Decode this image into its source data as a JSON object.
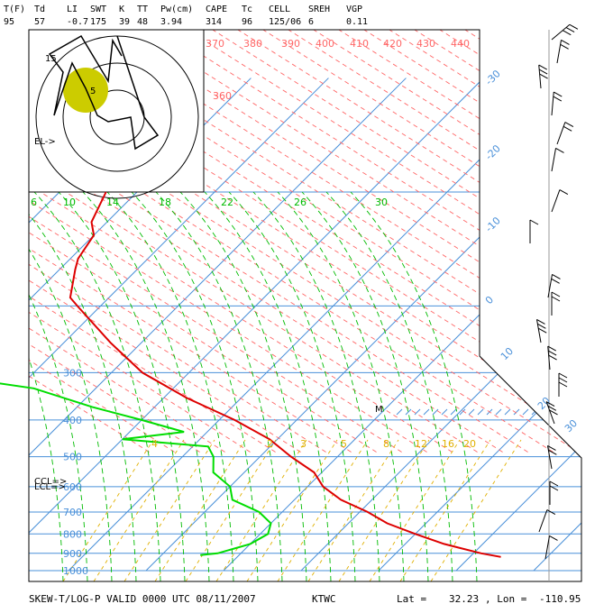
{
  "header": {
    "labels": [
      "T(F)",
      "Td",
      "LI",
      "SWT",
      "K",
      "TT",
      "Pw(cm)",
      "CAPE",
      "Tc",
      "CELL",
      "SREH",
      "VGP"
    ],
    "values": [
      "95",
      "57",
      "-0.7",
      "175",
      "39",
      "48",
      "3.94",
      "314",
      "96",
      "125/06",
      "6",
      "0.11"
    ]
  },
  "footer": {
    "title": "SKEW-T/LOG-P VALID 0000 UTC 08/11/2007",
    "station": "KTWC",
    "lat_label": "Lat =",
    "lat_value": "32.23",
    "lon_label": ", Lon =",
    "lon_value": "-110.95"
  },
  "hodograph": {
    "el_label": "EL->",
    "ring_labels": [
      "5",
      "15"
    ]
  },
  "markers": {
    "lcl_label": "LCL=>",
    "ccl_label": "CCL=>",
    "parcel_label": "M"
  },
  "colors": {
    "temperature": "#dd0000",
    "dewpoint": "#00dd00",
    "isotherm": "#4a90d9",
    "isobar": "#4a90d9",
    "theta_e": "#ff6666",
    "moist_adiabat": "#00bb00",
    "mixing_ratio": "#e0b000",
    "hodo_blob": "#cccc00"
  },
  "chart_data": {
    "type": "skew-t log-p",
    "pressure_levels_hPa": [
      100,
      200,
      300,
      400,
      500,
      600,
      700,
      800,
      900,
      1000
    ],
    "pressure_labels": [
      "300",
      "400",
      "500",
      "600",
      "700",
      "800",
      "900",
      "1000"
    ],
    "isotherm_labels_C": [
      "-30",
      "-20",
      "-10",
      "0",
      "10",
      "20",
      "30"
    ],
    "theta_e_labels_K": [
      "360",
      "370",
      "380",
      "390",
      "400",
      "410",
      "420",
      "430",
      "440"
    ],
    "mixing_ratio_labels": [
      "4",
      "2",
      "3",
      "5",
      "8",
      "12",
      "16",
      "20"
    ],
    "moist_adiabat_labels": [
      "6",
      "10",
      "14",
      "18",
      "22",
      "26",
      "30"
    ],
    "temperature_profile": [
      {
        "p": 100,
        "t": -64
      },
      {
        "p": 120,
        "t": -62
      },
      {
        "p": 130,
        "t": -60
      },
      {
        "p": 150,
        "t": -59
      },
      {
        "p": 160,
        "t": -58
      },
      {
        "p": 190,
        "t": -55
      },
      {
        "p": 200,
        "t": -53
      },
      {
        "p": 250,
        "t": -44
      },
      {
        "p": 300,
        "t": -36
      },
      {
        "p": 350,
        "t": -27
      },
      {
        "p": 400,
        "t": -18
      },
      {
        "p": 450,
        "t": -11
      },
      {
        "p": 500,
        "t": -6
      },
      {
        "p": 550,
        "t": -1
      },
      {
        "p": 600,
        "t": 2
      },
      {
        "p": 650,
        "t": 6
      },
      {
        "p": 700,
        "t": 11
      },
      {
        "p": 750,
        "t": 15
      },
      {
        "p": 800,
        "t": 20
      },
      {
        "p": 850,
        "t": 25
      },
      {
        "p": 900,
        "t": 31
      },
      {
        "p": 920,
        "t": 34
      }
    ],
    "dewpoint_profile": [
      {
        "p": 100,
        "t": -92
      },
      {
        "p": 120,
        "t": -94
      },
      {
        "p": 150,
        "t": -92
      },
      {
        "p": 170,
        "t": -95
      },
      {
        "p": 200,
        "t": -93
      },
      {
        "p": 230,
        "t": -94
      },
      {
        "p": 260,
        "t": -86
      },
      {
        "p": 280,
        "t": -73
      },
      {
        "p": 300,
        "t": -64
      },
      {
        "p": 330,
        "t": -48
      },
      {
        "p": 370,
        "t": -38
      },
      {
        "p": 400,
        "t": -30
      },
      {
        "p": 430,
        "t": -23
      },
      {
        "p": 450,
        "t": -30
      },
      {
        "p": 470,
        "t": -18
      },
      {
        "p": 500,
        "t": -16
      },
      {
        "p": 550,
        "t": -14
      },
      {
        "p": 600,
        "t": -10
      },
      {
        "p": 650,
        "t": -8
      },
      {
        "p": 700,
        "t": -3
      },
      {
        "p": 750,
        "t": 0
      },
      {
        "p": 800,
        "t": 1
      },
      {
        "p": 850,
        "t": 0
      },
      {
        "p": 900,
        "t": -3
      },
      {
        "p": 910,
        "t": -5
      }
    ]
  }
}
